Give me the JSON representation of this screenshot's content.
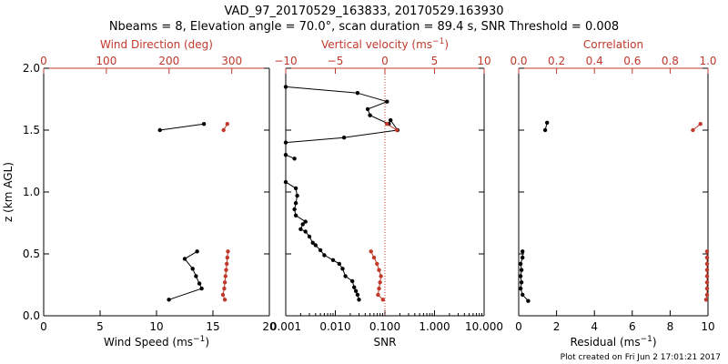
{
  "colors": {
    "black": "#000000",
    "red": "#c0392b"
  },
  "header": {
    "title": "VAD_97_20170529_163833, 20170529.163930",
    "subtitle": "Nbeams = 8, Elevation angle = 70.0°, scan duration = 89.4 s, SNR Threshold = 0.008"
  },
  "footer": {
    "text": "Plot created on Fri Jun  2 17:01:21 2017"
  },
  "y_axis": {
    "label": "z (km AGL)",
    "range": [
      0,
      2
    ],
    "ticks": [
      "0.0",
      "0.5",
      "1.0",
      "1.5",
      "2.0"
    ],
    "tick_values": [
      0,
      0.5,
      1,
      1.5,
      2
    ]
  },
  "chart_data": [
    {
      "type": "line",
      "panel": "wind",
      "bottom_axis": {
        "label": "Wind Speed (ms",
        "label_exp": "−1",
        "label_tail": ")",
        "range": [
          0,
          20
        ],
        "ticks": [
          "0",
          "5",
          "10",
          "15",
          "20"
        ],
        "tick_values": [
          0,
          5,
          10,
          15,
          20
        ]
      },
      "top_axis": {
        "label": "Wind Direction (deg)",
        "range": [
          0,
          360
        ],
        "ticks": [
          "0",
          "100",
          "200",
          "300"
        ],
        "tick_values": [
          0,
          100,
          200,
          300
        ]
      },
      "series": [
        {
          "axis": "bottom",
          "color": "black",
          "segments": [
            [
              [
                14.2,
                1.55
              ],
              [
                10.3,
                1.5
              ]
            ],
            [
              [
                13.6,
                0.52
              ],
              [
                12.5,
                0.46
              ],
              [
                13.2,
                0.38
              ],
              [
                13.5,
                0.32
              ],
              [
                13.8,
                0.26
              ],
              [
                14.0,
                0.22
              ],
              [
                11.1,
                0.13
              ]
            ]
          ]
        },
        {
          "axis": "top",
          "color": "red",
          "segments": [
            [
              [
                293,
                1.55
              ],
              [
                287,
                1.5
              ]
            ],
            [
              [
                294,
                0.52
              ],
              [
                293,
                0.47
              ],
              [
                292,
                0.42
              ],
              [
                291,
                0.37
              ],
              [
                290,
                0.32
              ],
              [
                289,
                0.27
              ],
              [
                288,
                0.22
              ],
              [
                286,
                0.17
              ],
              [
                289,
                0.13
              ]
            ]
          ]
        }
      ]
    },
    {
      "type": "line",
      "panel": "snr",
      "bottom_axis": {
        "label": "SNR",
        "scale": "log",
        "range": [
          0.001,
          10
        ],
        "ticks": [
          "0.001",
          "0.010",
          "0.100",
          "1.000",
          "10.000"
        ],
        "tick_values": [
          0.001,
          0.01,
          0.1,
          1,
          10
        ]
      },
      "top_axis": {
        "label": "Vertical velocity (ms",
        "label_exp": "−1",
        "label_tail": ")",
        "range": [
          -10,
          10
        ],
        "ticks": [
          "−10",
          "−5",
          "0",
          "5",
          "10"
        ],
        "tick_values": [
          -10,
          -5,
          0,
          5,
          10
        ]
      },
      "reference_line": {
        "axis": "top",
        "value": 0,
        "style": "dotted",
        "color": "red"
      },
      "series": [
        {
          "axis": "bottom",
          "color": "black",
          "segments": [
            [
              [
                0.001,
                1.85
              ],
              [
                0.028,
                1.8
              ],
              [
                0.11,
                1.73
              ],
              [
                0.045,
                1.67
              ],
              [
                0.05,
                1.62
              ],
              [
                0.12,
                1.55
              ],
              [
                0.13,
                1.58
              ],
              [
                0.18,
                1.5
              ],
              [
                0.015,
                1.44
              ],
              [
                0.001,
                1.4
              ]
            ],
            [
              [
                0.0015,
                1.27
              ],
              [
                0.001,
                1.3
              ]
            ],
            [
              [
                0.001,
                1.08
              ],
              [
                0.0016,
                1.03
              ],
              [
                0.0017,
                0.97
              ],
              [
                0.0016,
                0.91
              ],
              [
                0.0015,
                0.86
              ],
              [
                0.0016,
                0.81
              ],
              [
                0.0025,
                0.76
              ],
              [
                0.0022,
                0.74
              ],
              [
                0.002,
                0.7
              ],
              [
                0.0025,
                0.68
              ],
              [
                0.003,
                0.64
              ],
              [
                0.0035,
                0.59
              ],
              [
                0.004,
                0.57
              ],
              [
                0.005,
                0.53
              ],
              [
                0.006,
                0.49
              ],
              [
                0.009,
                0.45
              ],
              [
                0.012,
                0.42
              ],
              [
                0.014,
                0.38
              ],
              [
                0.016,
                0.32
              ],
              [
                0.022,
                0.28
              ],
              [
                0.024,
                0.23
              ],
              [
                0.026,
                0.2
              ],
              [
                0.028,
                0.17
              ],
              [
                0.03,
                0.13
              ]
            ]
          ]
        },
        {
          "axis": "top",
          "color": "red",
          "segments": [
            [
              [
                0.2,
                1.55
              ],
              [
                1.2,
                1.5
              ]
            ],
            [
              [
                -1.4,
                0.52
              ],
              [
                -1.1,
                0.47
              ],
              [
                -0.8,
                0.42
              ],
              [
                -0.6,
                0.37
              ],
              [
                -0.4,
                0.32
              ],
              [
                -0.5,
                0.27
              ],
              [
                -0.6,
                0.22
              ],
              [
                -0.7,
                0.17
              ],
              [
                -0.2,
                0.13
              ]
            ]
          ]
        }
      ]
    },
    {
      "type": "line",
      "panel": "residual",
      "bottom_axis": {
        "label": "Residual (ms",
        "label_exp": "−1",
        "label_tail": ")",
        "range": [
          0,
          10
        ],
        "ticks": [
          "0",
          "2",
          "4",
          "6",
          "8",
          "10"
        ],
        "tick_values": [
          0,
          2,
          4,
          6,
          8,
          10
        ]
      },
      "top_axis": {
        "label": "Correlation",
        "range": [
          0,
          1
        ],
        "ticks": [
          "0.0",
          "0.2",
          "0.4",
          "0.6",
          "0.8",
          "1.0"
        ],
        "tick_values": [
          0,
          0.2,
          0.4,
          0.6,
          0.8,
          1.0
        ]
      },
      "series": [
        {
          "axis": "bottom",
          "color": "black",
          "segments": [
            [
              [
                1.5,
                1.56
              ],
              [
                1.4,
                1.5
              ]
            ],
            [
              [
                0.2,
                0.52
              ],
              [
                0.2,
                0.47
              ],
              [
                0.1,
                0.42
              ],
              [
                0.15,
                0.37
              ],
              [
                0.1,
                0.32
              ],
              [
                0.15,
                0.27
              ],
              [
                0.1,
                0.22
              ],
              [
                0.2,
                0.17
              ],
              [
                0.5,
                0.12
              ]
            ]
          ]
        },
        {
          "axis": "top",
          "color": "red",
          "segments": [
            [
              [
                0.96,
                1.55
              ],
              [
                0.92,
                1.5
              ]
            ],
            [
              [
                0.995,
                0.52
              ],
              [
                0.995,
                0.47
              ],
              [
                0.995,
                0.42
              ],
              [
                0.995,
                0.37
              ],
              [
                0.995,
                0.32
              ],
              [
                0.995,
                0.27
              ],
              [
                0.995,
                0.22
              ],
              [
                0.995,
                0.17
              ],
              [
                0.99,
                0.13
              ]
            ]
          ]
        }
      ]
    }
  ]
}
